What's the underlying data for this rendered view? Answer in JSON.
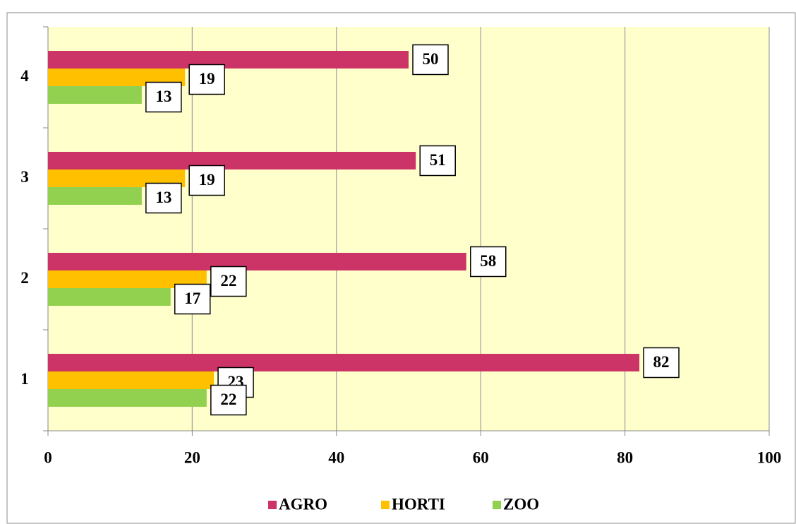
{
  "chart_data": {
    "type": "hbar",
    "categories": [
      "1",
      "2",
      "3",
      "4"
    ],
    "series": [
      {
        "name": "AGRO",
        "color": "#cc3366",
        "values": [
          82,
          58,
          51,
          50
        ]
      },
      {
        "name": "HORTI",
        "color": "#ffc000",
        "values": [
          23,
          22,
          19,
          19
        ]
      },
      {
        "name": "ZOO",
        "color": "#92d050",
        "values": [
          22,
          17,
          13,
          13
        ]
      }
    ],
    "xlim": [
      0,
      100
    ],
    "xticks": [
      0,
      20,
      40,
      60,
      80,
      100
    ],
    "grid": true,
    "legend": "bottom"
  }
}
